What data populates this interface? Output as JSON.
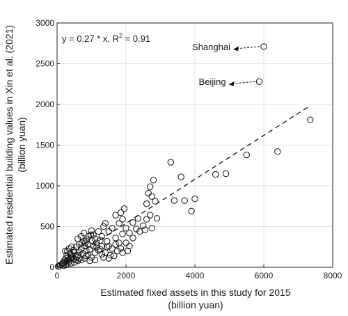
{
  "chart_data": {
    "type": "scatter",
    "xlabel_lines": [
      "Estimated fixed assets in this study for 2015",
      "(billion yuan)"
    ],
    "ylabel_lines": [
      "Estimated residential building values in Xin et al. (2021)",
      "(billion yuan)"
    ],
    "xlim": [
      0,
      8000
    ],
    "ylim": [
      0,
      3000
    ],
    "xticks": [
      0,
      2000,
      4000,
      6000,
      8000
    ],
    "yticks": [
      0,
      500,
      1000,
      1500,
      2000,
      2500,
      3000
    ],
    "grid": true,
    "equation": {
      "prefix": "y = 0.27 * x, R",
      "superscript": "2",
      "suffix": " = 0.91"
    },
    "fit_line": {
      "slope": 0.27,
      "x_range": [
        0,
        7350
      ]
    },
    "annotations": [
      {
        "label": "Shanghai",
        "x": 6000,
        "y": 2710
      },
      {
        "label": "Beijing",
        "x": 5870,
        "y": 2280
      }
    ],
    "points": [
      [
        6000,
        2710
      ],
      [
        5870,
        2280
      ],
      [
        7350,
        1810
      ],
      [
        6400,
        1420
      ],
      [
        5500,
        1380
      ],
      [
        4900,
        1150
      ],
      [
        4600,
        1140
      ],
      [
        3300,
        1290
      ],
      [
        3600,
        1110
      ],
      [
        4000,
        840
      ],
      [
        3700,
        820
      ],
      [
        3400,
        820
      ],
      [
        3900,
        690
      ],
      [
        2800,
        1070
      ],
      [
        2700,
        990
      ],
      [
        2650,
        910
      ],
      [
        2750,
        870
      ],
      [
        2850,
        810
      ],
      [
        2600,
        780
      ],
      [
        2900,
        600
      ],
      [
        2700,
        640
      ],
      [
        2600,
        590
      ],
      [
        2500,
        510
      ],
      [
        2750,
        480
      ],
      [
        2550,
        460
      ],
      [
        2350,
        600
      ],
      [
        2200,
        550
      ],
      [
        2300,
        470
      ],
      [
        2400,
        440
      ],
      [
        2100,
        420
      ],
      [
        2000,
        480
      ],
      [
        1950,
        720
      ],
      [
        1850,
        670
      ],
      [
        1700,
        640
      ],
      [
        1900,
        590
      ],
      [
        1800,
        540
      ],
      [
        1600,
        480
      ],
      [
        1500,
        440
      ],
      [
        1400,
        540
      ],
      [
        1350,
        500
      ],
      [
        1200,
        440
      ],
      [
        1300,
        380
      ],
      [
        1450,
        320
      ],
      [
        1900,
        410
      ],
      [
        2200,
        360
      ],
      [
        2000,
        300
      ],
      [
        1800,
        300
      ],
      [
        1700,
        360
      ],
      [
        1500,
        260
      ],
      [
        1300,
        260
      ],
      [
        1250,
        330
      ],
      [
        1100,
        350
      ],
      [
        1000,
        330
      ],
      [
        1150,
        300
      ],
      [
        1050,
        260
      ],
      [
        900,
        280
      ],
      [
        950,
        220
      ],
      [
        800,
        260
      ],
      [
        850,
        200
      ],
      [
        700,
        230
      ],
      [
        750,
        170
      ],
      [
        650,
        190
      ],
      [
        600,
        150
      ],
      [
        550,
        130
      ],
      [
        500,
        180
      ],
      [
        450,
        130
      ],
      [
        400,
        110
      ],
      [
        350,
        100
      ],
      [
        300,
        80
      ],
      [
        250,
        70
      ],
      [
        200,
        50
      ],
      [
        150,
        40
      ],
      [
        100,
        30
      ],
      [
        60,
        15
      ],
      [
        30,
        10
      ],
      [
        1000,
        120
      ],
      [
        1100,
        180
      ],
      [
        1200,
        210
      ],
      [
        900,
        150
      ],
      [
        800,
        110
      ],
      [
        700,
        90
      ],
      [
        600,
        80
      ],
      [
        500,
        60
      ],
      [
        400,
        50
      ],
      [
        350,
        70
      ],
      [
        300,
        40
      ],
      [
        250,
        30
      ],
      [
        200,
        20
      ],
      [
        180,
        60
      ],
      [
        220,
        90
      ],
      [
        1400,
        180
      ],
      [
        1600,
        230
      ],
      [
        1750,
        200
      ],
      [
        1550,
        150
      ],
      [
        1350,
        120
      ],
      [
        1300,
        160
      ],
      [
        1100,
        90
      ],
      [
        950,
        80
      ],
      [
        850,
        140
      ],
      [
        650,
        110
      ],
      [
        550,
        90
      ],
      [
        480,
        100
      ],
      [
        420,
        150
      ],
      [
        380,
        170
      ],
      [
        320,
        120
      ],
      [
        280,
        150
      ],
      [
        260,
        110
      ],
      [
        240,
        200
      ],
      [
        300,
        200
      ],
      [
        350,
        230
      ],
      [
        420,
        250
      ],
      [
        480,
        210
      ],
      [
        560,
        250
      ],
      [
        640,
        280
      ],
      [
        720,
        300
      ],
      [
        780,
        320
      ],
      [
        860,
        340
      ],
      [
        920,
        380
      ],
      [
        980,
        400
      ],
      [
        1050,
        400
      ],
      [
        600,
        350
      ],
      [
        700,
        380
      ],
      [
        780,
        420
      ],
      [
        820,
        300
      ],
      [
        1000,
        450
      ],
      [
        1150,
        250
      ],
      [
        1250,
        220
      ],
      [
        1450,
        250
      ],
      [
        1700,
        280
      ],
      [
        1850,
        230
      ],
      [
        2100,
        260
      ],
      [
        2050,
        200
      ],
      [
        1900,
        180
      ],
      [
        1650,
        140
      ],
      [
        1500,
        110
      ]
    ]
  }
}
